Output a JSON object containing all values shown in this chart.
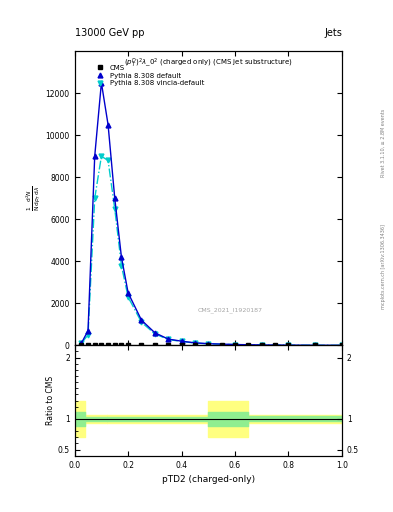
{
  "title_top": "13000 GeV pp",
  "title_right": "Jets",
  "panel_title": "$(p_T^P)^2\\lambda\\_0^2$ (charged only) (CMS jet substructure)",
  "xlabel": "pTD2 (charged-only)",
  "ylabel_ratio": "Ratio to CMS",
  "watermark": "CMS_2021_I1920187",
  "rivet_label": "Rivet 3.1.10, ≥ 2.8M events",
  "mcplots_label": "mcplots.cern.ch [arXiv:1306.3436]",
  "cms_x": [
    0.025,
    0.05,
    0.075,
    0.1,
    0.125,
    0.15,
    0.175,
    0.2,
    0.25,
    0.3,
    0.35,
    0.4,
    0.45,
    0.5,
    0.55,
    0.6,
    0.65,
    0.7,
    0.75,
    0.8,
    0.9,
    1.0
  ],
  "cms_y": [
    5,
    5,
    5,
    5,
    5,
    5,
    5,
    5,
    5,
    5,
    5,
    5,
    5,
    5,
    5,
    5,
    5,
    5,
    5,
    5,
    5,
    5
  ],
  "pythia_default_x": [
    0.025,
    0.05,
    0.075,
    0.1,
    0.125,
    0.15,
    0.175,
    0.2,
    0.25,
    0.3,
    0.35,
    0.4,
    0.45,
    0.5,
    0.6,
    0.7,
    0.8,
    0.9,
    1.0
  ],
  "pythia_default_y": [
    100,
    700,
    9000,
    12500,
    10500,
    7000,
    4200,
    2500,
    1200,
    600,
    300,
    200,
    120,
    80,
    40,
    20,
    10,
    5,
    2
  ],
  "pythia_vincia_x": [
    0.025,
    0.05,
    0.075,
    0.1,
    0.125,
    0.15,
    0.175,
    0.2,
    0.25,
    0.3,
    0.35,
    0.4,
    0.45,
    0.5,
    0.6,
    0.7,
    0.8,
    0.9,
    1.0
  ],
  "pythia_vincia_y": [
    100,
    500,
    7000,
    9000,
    8800,
    6500,
    3800,
    2300,
    1100,
    550,
    280,
    185,
    110,
    75,
    38,
    18,
    9,
    4,
    2
  ],
  "ratio_x_edges": [
    0.0,
    0.04,
    0.12,
    0.5,
    0.65,
    1.0
  ],
  "ratio_green_lo": [
    0.88,
    0.97,
    0.97,
    0.88,
    0.96
  ],
  "ratio_green_hi": [
    1.12,
    1.03,
    1.03,
    1.12,
    1.04
  ],
  "ratio_yellow_lo": [
    0.7,
    0.93,
    0.93,
    0.7,
    0.93
  ],
  "ratio_yellow_hi": [
    1.3,
    1.07,
    1.07,
    1.3,
    1.07
  ],
  "ylim_main": [
    0,
    14000
  ],
  "yticks_main": [
    0,
    2000,
    4000,
    6000,
    8000,
    10000,
    12000
  ],
  "ylim_ratio": [
    0.4,
    2.2
  ],
  "color_cms": "#000000",
  "color_pythia_default": "#0000cc",
  "color_pythia_vincia": "#00cccc",
  "color_green": "#90ee90",
  "color_yellow": "#ffff80",
  "background_color": "#ffffff"
}
